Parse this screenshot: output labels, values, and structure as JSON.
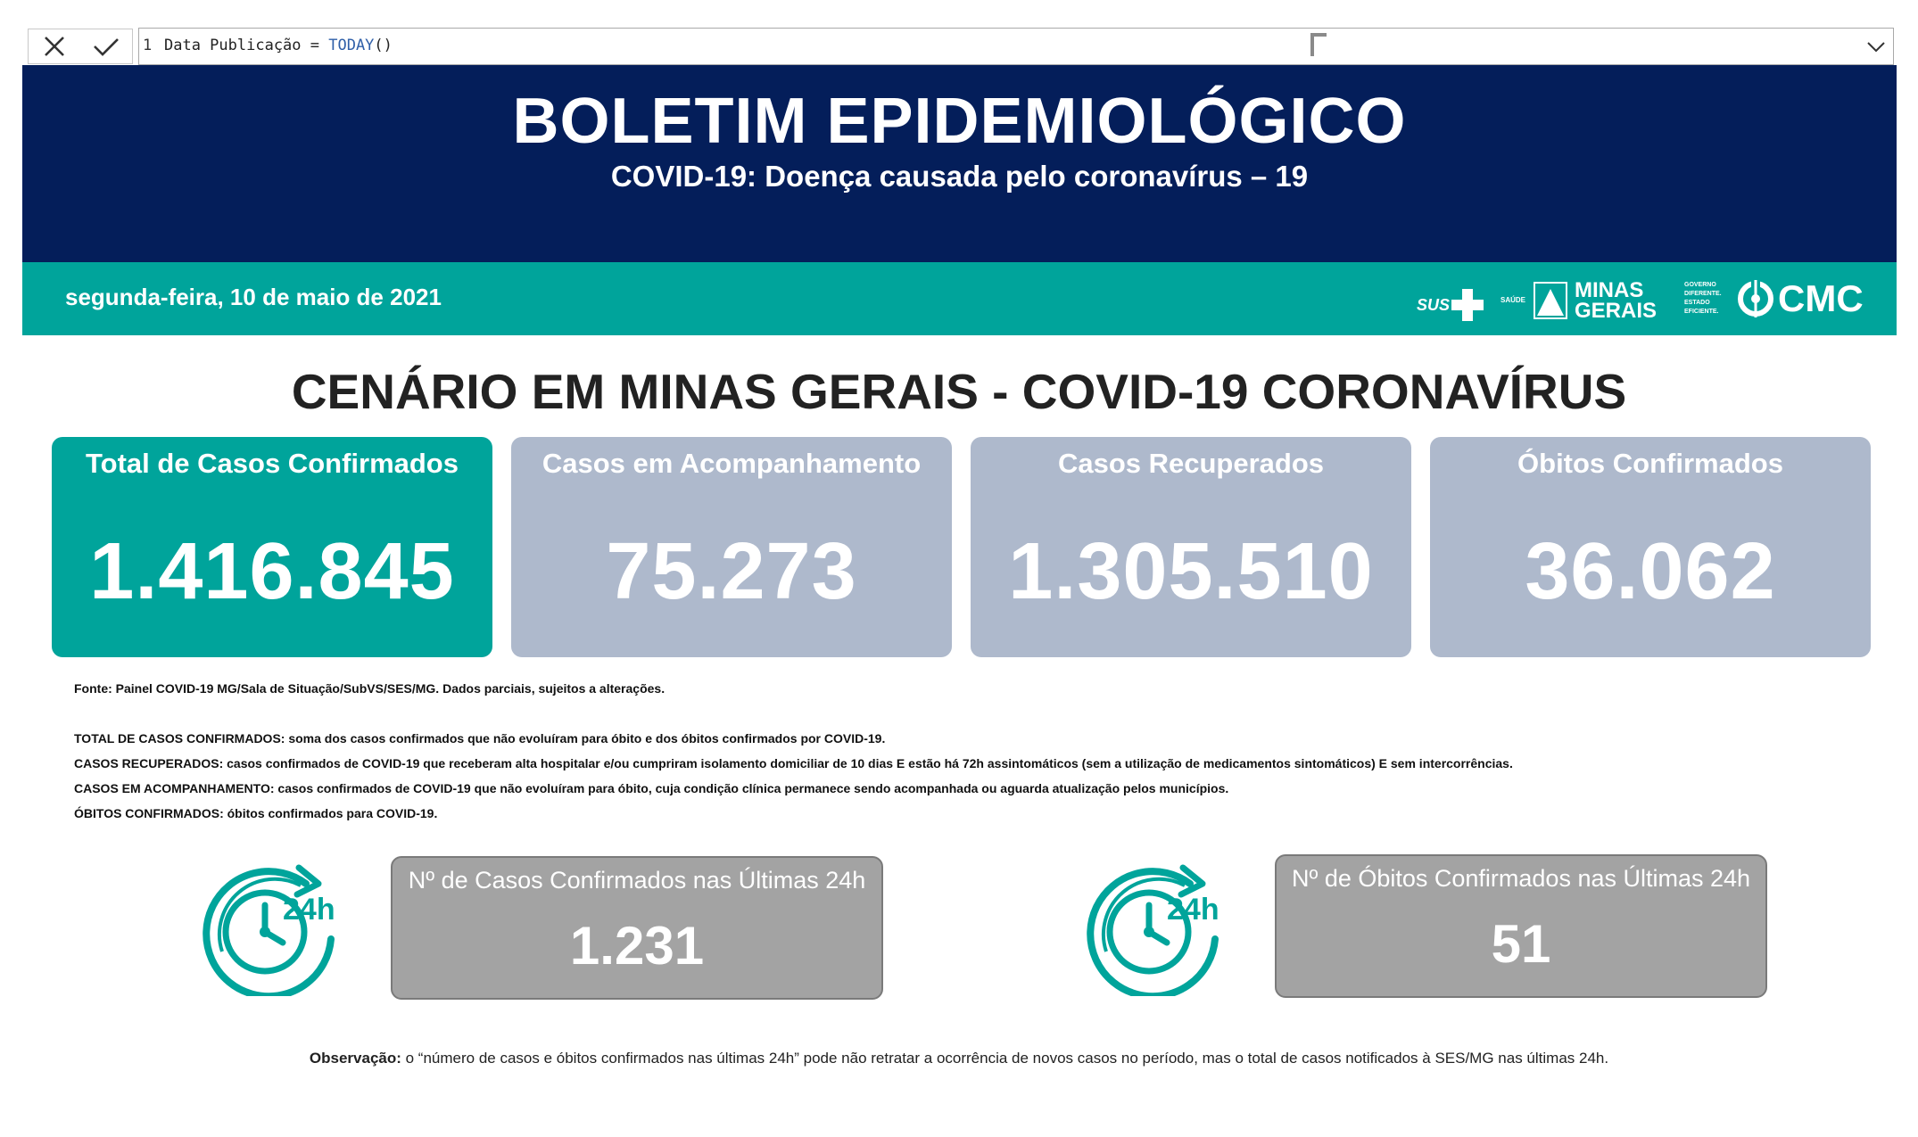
{
  "formula_bar": {
    "line_number": "1",
    "field": "Data Publicação = ",
    "function": "TODAY",
    "args": "()",
    "cancel_icon": "close-icon",
    "commit_icon": "check-icon",
    "expand_icon": "chevron-down-icon"
  },
  "header": {
    "title": "BOLETIM EPIDEMIOLÓGICO",
    "subtitle": "COVID-19: Doença causada pelo coronavírus – 19",
    "background": "#041e5a"
  },
  "band": {
    "date": "segunda-feira, 10 de maio de 2021",
    "background": "#00a49b",
    "logos": {
      "sus": "SUS",
      "saude": "SAÚDE",
      "mg_line1": "MINAS",
      "mg_line2": "GERAIS",
      "mg_tag1": "GOVERNO",
      "mg_tag2": "DIFERENTE.",
      "mg_tag3": "ESTADO",
      "mg_tag4": "EFICIENTE.",
      "cmc": "CMC"
    }
  },
  "section_title": "CENÁRIO EM MINAS GERAIS - COVID-19 CORONAVÍRUS",
  "cards": [
    {
      "label": "Total de Casos Confirmados",
      "value": "1.416.845",
      "color": "#00a49b"
    },
    {
      "label": "Casos em Acompanhamento",
      "value": "75.273",
      "color": "#aeb9cc"
    },
    {
      "label": "Casos Recuperados",
      "value": "1.305.510",
      "color": "#aeb9cc"
    },
    {
      "label": "Óbitos Confirmados",
      "value": "36.062",
      "color": "#aeb9cc"
    }
  ],
  "notes": {
    "source": "Fonte: Painel COVID-19 MG/Sala de Situação/SubVS/SES/MG. Dados parciais, sujeitos a alterações.",
    "def_total": "TOTAL DE  CASOS CONFIRMADOS: soma dos casos confirmados que não evoluíram para óbito e dos óbitos confirmados por COVID-19.",
    "def_recovered": "CASOS RECUPERADOS: casos confirmados de COVID-19 que receberam alta hospitalar e/ou cumpriram isolamento domiciliar de 10 dias E estão há 72h assintomáticos (sem a utilização de medicamentos sintomáticos) E sem intercorrências.",
    "def_monitoring": "CASOS EM ACOMPANHAMENTO: casos confirmados de COVID-19 que não evoluíram para óbito, cuja condição clínica permanece sendo acompanhada ou aguarda atualização pelos municípios.",
    "def_deaths": "ÓBITOS CONFIRMADOS: óbitos confirmados para COVID-19."
  },
  "last24": {
    "icon": "clock-24h-icon",
    "clock_label": "24h",
    "cases_label": "Nº de Casos Confirmados nas Últimas 24h",
    "cases_value": "1.231",
    "deaths_label": "Nº de Óbitos Confirmados nas Últimas 24h",
    "deaths_value": "51"
  },
  "observation": {
    "label": "Observação:",
    "text": " o “número de casos e óbitos confirmados nas últimas 24h” pode não retratar a ocorrência de novos casos no período, mas o total de casos notificados à SES/MG nas últimas 24h."
  }
}
